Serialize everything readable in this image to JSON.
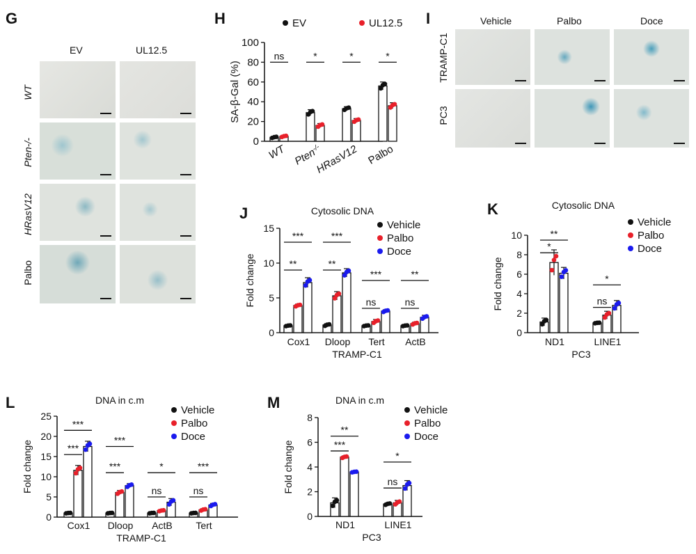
{
  "panels": {
    "G": {
      "label": "G",
      "col_labels": [
        "EV",
        "UL12.5"
      ],
      "row_labels": [
        "WT",
        "Pten-/-",
        "HRasV12",
        "Palbo"
      ]
    },
    "H": {
      "label": "H"
    },
    "I": {
      "label": "I",
      "col_labels": [
        "Vehicle",
        "Palbo",
        "Doce"
      ],
      "row_labels": [
        "TRAMP-C1",
        "PC3"
      ]
    },
    "J": {
      "label": "J"
    },
    "K": {
      "label": "K"
    },
    "L": {
      "label": "L"
    },
    "M": {
      "label": "M"
    }
  },
  "colors": {
    "black": "#111111",
    "red": "#e8202a",
    "blue": "#1a1aee"
  },
  "chart_data": [
    {
      "id": "H",
      "type": "bar",
      "title": "",
      "ylabel": "SA-β-Gal (%)",
      "xlabel": "",
      "ylim": [
        0,
        100
      ],
      "yticks": [
        0,
        20,
        40,
        60,
        80,
        100
      ],
      "categories": [
        "WT",
        "Pten-/-",
        "HRasV12",
        "Palbo"
      ],
      "series": [
        {
          "name": "EV",
          "color": "#111111",
          "values": [
            4,
            29,
            33,
            56
          ],
          "errors": [
            1,
            3,
            2,
            4
          ]
        },
        {
          "name": "UL12.5",
          "color": "#e8202a",
          "values": [
            5,
            16,
            21,
            36
          ],
          "errors": [
            1,
            2,
            2,
            3
          ]
        }
      ],
      "significance": [
        {
          "group": 0,
          "text": "ns",
          "from": 0,
          "to": 1,
          "level": 80
        },
        {
          "group": 1,
          "text": "*",
          "from": 0,
          "to": 1,
          "level": 80
        },
        {
          "group": 2,
          "text": "*",
          "from": 0,
          "to": 1,
          "level": 80
        },
        {
          "group": 3,
          "text": "*",
          "from": 0,
          "to": 1,
          "level": 80
        }
      ]
    },
    {
      "id": "J",
      "type": "bar",
      "title": "Cytosolic DNA",
      "ylabel": "Fold change",
      "xlabel": "TRAMP-C1",
      "ylim": [
        0,
        15
      ],
      "yticks": [
        0,
        5,
        10,
        15
      ],
      "categories": [
        "Cox1",
        "Dloop",
        "Tert",
        "ActB"
      ],
      "series": [
        {
          "name": "Vehicle",
          "color": "#111111",
          "values": [
            1.0,
            1.1,
            1.0,
            1.0
          ],
          "errors": [
            0.1,
            0.2,
            0.1,
            0.1
          ]
        },
        {
          "name": "Palbo",
          "color": "#e8202a",
          "values": [
            3.9,
            5.3,
            1.6,
            1.3
          ],
          "errors": [
            0.2,
            0.6,
            0.3,
            0.2
          ]
        },
        {
          "name": "Doce",
          "color": "#1a1aee",
          "values": [
            7.2,
            8.6,
            3.1,
            2.2
          ],
          "errors": [
            0.7,
            0.6,
            0.2,
            0.3
          ]
        }
      ],
      "significance": [
        {
          "group": 0,
          "text": "**",
          "from": 0,
          "to": 1,
          "level": 9
        },
        {
          "group": 0,
          "text": "***",
          "from": 0,
          "to": 2,
          "level": 13
        },
        {
          "group": 1,
          "text": "**",
          "from": 0,
          "to": 1,
          "level": 9
        },
        {
          "group": 1,
          "text": "***",
          "from": 0,
          "to": 2,
          "level": 13
        },
        {
          "group": 2,
          "text": "ns",
          "from": 0,
          "to": 1,
          "level": 3.5
        },
        {
          "group": 2,
          "text": "***",
          "from": 0,
          "to": 2,
          "level": 7.5
        },
        {
          "group": 3,
          "text": "ns",
          "from": 0,
          "to": 1,
          "level": 3.5
        },
        {
          "group": 3,
          "text": "**",
          "from": 0,
          "to": 2,
          "level": 7.5
        }
      ]
    },
    {
      "id": "K",
      "type": "bar",
      "title": "Cytosolic DNA",
      "ylabel": "Fold change",
      "xlabel": "PC3",
      "ylim": [
        0,
        10
      ],
      "yticks": [
        0,
        2,
        4,
        6,
        8,
        10
      ],
      "categories": [
        "ND1",
        "LINE1"
      ],
      "series": [
        {
          "name": "Vehicle",
          "color": "#111111",
          "values": [
            1.1,
            1.0
          ],
          "errors": [
            0.4,
            0.05
          ]
        },
        {
          "name": "Palbo",
          "color": "#e8202a",
          "values": [
            7.2,
            1.8
          ],
          "errors": [
            1.3,
            0.4
          ]
        },
        {
          "name": "Doce",
          "color": "#1a1aee",
          "values": [
            6.1,
            2.8
          ],
          "errors": [
            0.6,
            0.5
          ]
        }
      ],
      "significance": [
        {
          "group": 0,
          "text": "*",
          "from": 0,
          "to": 1,
          "level": 8.2
        },
        {
          "group": 0,
          "text": "**",
          "from": 0,
          "to": 2,
          "level": 9.5
        },
        {
          "group": 1,
          "text": "ns",
          "from": 0,
          "to": 1,
          "level": 2.6
        },
        {
          "group": 1,
          "text": "*",
          "from": 0,
          "to": 2,
          "level": 4.9
        }
      ]
    },
    {
      "id": "L",
      "type": "bar",
      "title": "DNA in c.m",
      "ylabel": "Fold change",
      "xlabel": "TRAMP-C1",
      "ylim": [
        0,
        25
      ],
      "yticks": [
        0,
        5,
        10,
        15,
        20,
        25
      ],
      "categories": [
        "Cox1",
        "Dloop",
        "ActB",
        "Tert"
      ],
      "series": [
        {
          "name": "Vehicle",
          "color": "#111111",
          "values": [
            1.0,
            1.0,
            1.0,
            1.0
          ],
          "errors": [
            0.1,
            0.1,
            0.1,
            0.1
          ]
        },
        {
          "name": "Palbo",
          "color": "#e8202a",
          "values": [
            11.6,
            6.1,
            1.6,
            1.8
          ],
          "errors": [
            1.2,
            0.5,
            0.2,
            0.3
          ]
        },
        {
          "name": "Doce",
          "color": "#1a1aee",
          "values": [
            17.5,
            7.8,
            3.7,
            3.0
          ],
          "errors": [
            1.3,
            0.5,
            0.9,
            0.4
          ]
        }
      ],
      "significance": [
        {
          "group": 0,
          "text": "***",
          "from": 0,
          "to": 1,
          "level": 15.5
        },
        {
          "group": 0,
          "text": "***",
          "from": 0,
          "to": 2,
          "level": 21.5
        },
        {
          "group": 1,
          "text": "***",
          "from": 0,
          "to": 1,
          "level": 11
        },
        {
          "group": 1,
          "text": "***",
          "from": 0,
          "to": 2,
          "level": 17.5
        },
        {
          "group": 2,
          "text": "ns",
          "from": 0,
          "to": 1,
          "level": 5
        },
        {
          "group": 2,
          "text": "*",
          "from": 0,
          "to": 2,
          "level": 11
        },
        {
          "group": 3,
          "text": "ns",
          "from": 0,
          "to": 1,
          "level": 5
        },
        {
          "group": 3,
          "text": "***",
          "from": 0,
          "to": 2,
          "level": 11
        }
      ]
    },
    {
      "id": "M",
      "type": "bar",
      "title": "DNA in c.m",
      "ylabel": "Fold change",
      "xlabel": "PC3",
      "ylim": [
        0,
        8
      ],
      "yticks": [
        0,
        2,
        4,
        6,
        8
      ],
      "categories": [
        "ND1",
        "LINE1"
      ],
      "series": [
        {
          "name": "Vehicle",
          "color": "#111111",
          "values": [
            1.1,
            1.0
          ],
          "errors": [
            0.4,
            0.1
          ]
        },
        {
          "name": "Palbo",
          "color": "#e8202a",
          "values": [
            4.8,
            1.1
          ],
          "errors": [
            0.1,
            0.2
          ]
        },
        {
          "name": "Doce",
          "color": "#1a1aee",
          "values": [
            3.6,
            2.5
          ],
          "errors": [
            0.05,
            0.4
          ]
        }
      ],
      "significance": [
        {
          "group": 0,
          "text": "***",
          "from": 0,
          "to": 1,
          "level": 5.3
        },
        {
          "group": 0,
          "text": "**",
          "from": 0,
          "to": 2,
          "level": 6.5
        },
        {
          "group": 1,
          "text": "ns",
          "from": 0,
          "to": 1,
          "level": 2.3
        },
        {
          "group": 1,
          "text": "*",
          "from": 0,
          "to": 2,
          "level": 4.4
        }
      ]
    }
  ]
}
